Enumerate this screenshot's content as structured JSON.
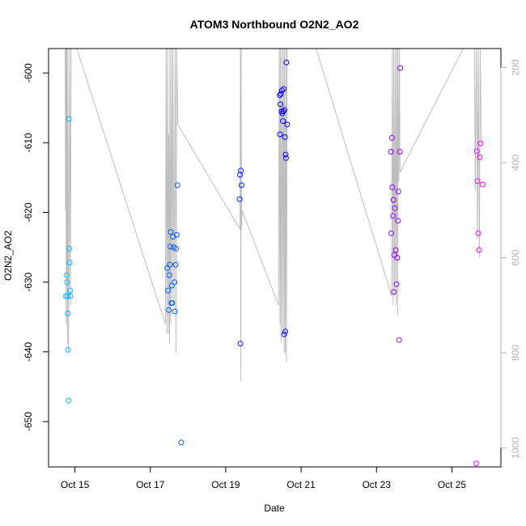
{
  "chart_data": {
    "type": "scatter",
    "title": "ATOM3 Northbound O2N2_AO2",
    "xlabel": "Date",
    "ylabel": "O2N2_AO2",
    "x_unit": "days (October, month-day with fraction)",
    "xlim": [
      14.3,
      26.3
    ],
    "ylim": [
      -656.5,
      -596.5
    ],
    "y2lim": [
      1040,
      160
    ],
    "x_ticks": [
      15,
      17,
      19,
      21,
      23,
      25
    ],
    "x_tick_labels": [
      "Oct 15",
      "Oct 17",
      "Oct 19",
      "Oct 21",
      "Oct 23",
      "Oct 25"
    ],
    "y_ticks": [
      -600,
      -610,
      -620,
      -630,
      -640,
      -650
    ],
    "y_tick_labels": [
      "-600",
      "-610",
      "-620",
      "-630",
      "-640",
      "-650"
    ],
    "y2_ticks": [
      200,
      400,
      600,
      800,
      1000
    ],
    "y2_tick_labels": [
      "200",
      "400",
      "600",
      "800",
      "1000"
    ],
    "grid": false,
    "legend": "none",
    "colors": {
      "pressure_line": "#bebebe",
      "axis": "#000000",
      "right_axis": "#b3b3b3",
      "point_ramp": [
        "#00bfff",
        "#0000ff",
        "#ff00ff"
      ]
    },
    "points": [
      {
        "x": 14.76,
        "y": -632.0
      },
      {
        "x": 14.78,
        "y": -629.0
      },
      {
        "x": 14.79,
        "y": -630.0
      },
      {
        "x": 14.8,
        "y": -632.0
      },
      {
        "x": 14.81,
        "y": -634.5
      },
      {
        "x": 14.82,
        "y": -639.7
      },
      {
        "x": 14.83,
        "y": -647.0
      },
      {
        "x": 14.84,
        "y": -606.6
      },
      {
        "x": 14.85,
        "y": -625.2
      },
      {
        "x": 14.86,
        "y": -627.2
      },
      {
        "x": 14.87,
        "y": -631.2
      },
      {
        "x": 14.88,
        "y": -632.0
      },
      {
        "x": 17.45,
        "y": -628.0
      },
      {
        "x": 17.47,
        "y": -631.2
      },
      {
        "x": 17.49,
        "y": -634.0
      },
      {
        "x": 17.5,
        "y": -629.0
      },
      {
        "x": 17.52,
        "y": -627.5
      },
      {
        "x": 17.53,
        "y": -624.9
      },
      {
        "x": 17.54,
        "y": -622.8
      },
      {
        "x": 17.56,
        "y": -633.0
      },
      {
        "x": 17.57,
        "y": -630.5
      },
      {
        "x": 17.58,
        "y": -633.0
      },
      {
        "x": 17.6,
        "y": -623.5
      },
      {
        "x": 17.62,
        "y": -625.0
      },
      {
        "x": 17.64,
        "y": -630.0
      },
      {
        "x": 17.65,
        "y": -634.2
      },
      {
        "x": 17.67,
        "y": -627.5
      },
      {
        "x": 17.68,
        "y": -625.2
      },
      {
        "x": 17.7,
        "y": -623.2
      },
      {
        "x": 17.72,
        "y": -616.1
      },
      {
        "x": 17.82,
        "y": -653.0
      },
      {
        "x": 19.37,
        "y": -618.1
      },
      {
        "x": 19.38,
        "y": -614.6
      },
      {
        "x": 19.39,
        "y": -638.8
      },
      {
        "x": 19.4,
        "y": -614.0
      },
      {
        "x": 19.42,
        "y": -616.1
      },
      {
        "x": 20.43,
        "y": -603.2
      },
      {
        "x": 20.44,
        "y": -608.8
      },
      {
        "x": 20.45,
        "y": -604.5
      },
      {
        "x": 20.46,
        "y": -603.0
      },
      {
        "x": 20.48,
        "y": -605.5
      },
      {
        "x": 20.49,
        "y": -602.5
      },
      {
        "x": 20.5,
        "y": -605.8
      },
      {
        "x": 20.52,
        "y": -606.9
      },
      {
        "x": 20.53,
        "y": -605.5
      },
      {
        "x": 20.54,
        "y": -602.3
      },
      {
        "x": 20.55,
        "y": -637.5
      },
      {
        "x": 20.56,
        "y": -605.3
      },
      {
        "x": 20.57,
        "y": -609.2
      },
      {
        "x": 20.58,
        "y": -637.1
      },
      {
        "x": 20.59,
        "y": -611.7
      },
      {
        "x": 20.6,
        "y": -612.2
      },
      {
        "x": 20.61,
        "y": -598.5
      },
      {
        "x": 20.63,
        "y": -607.4
      },
      {
        "x": 23.38,
        "y": -611.3
      },
      {
        "x": 23.39,
        "y": -623.0
      },
      {
        "x": 23.41,
        "y": -609.3
      },
      {
        "x": 23.42,
        "y": -616.4
      },
      {
        "x": 23.44,
        "y": -620.5
      },
      {
        "x": 23.45,
        "y": -618.2
      },
      {
        "x": 23.46,
        "y": -631.4
      },
      {
        "x": 23.47,
        "y": -626.1
      },
      {
        "x": 23.49,
        "y": -619.4
      },
      {
        "x": 23.51,
        "y": -625.4
      },
      {
        "x": 23.53,
        "y": -630.3
      },
      {
        "x": 23.55,
        "y": -626.5
      },
      {
        "x": 23.57,
        "y": -621.2
      },
      {
        "x": 23.58,
        "y": -617.0
      },
      {
        "x": 23.6,
        "y": -638.3
      },
      {
        "x": 23.62,
        "y": -611.3
      },
      {
        "x": 23.63,
        "y": -599.3
      },
      {
        "x": 25.65,
        "y": -656.0
      },
      {
        "x": 25.66,
        "y": -611.2
      },
      {
        "x": 25.68,
        "y": -615.5
      },
      {
        "x": 25.7,
        "y": -623.0
      },
      {
        "x": 25.72,
        "y": -625.4
      },
      {
        "x": 25.74,
        "y": -612.1
      },
      {
        "x": 25.76,
        "y": -610.1
      },
      {
        "x": 25.82,
        "y": -616.0
      }
    ],
    "pressure_series": {
      "name": "pressure",
      "axis": "right",
      "points": [
        [
          14.74,
          160
        ],
        [
          14.75,
          500
        ],
        [
          14.76,
          160
        ],
        [
          14.77,
          740
        ],
        [
          14.78,
          160
        ],
        [
          14.8,
          780
        ],
        [
          14.81,
          160
        ],
        [
          14.83,
          800
        ],
        [
          14.86,
          160
        ],
        [
          14.88,
          700
        ],
        [
          14.9,
          160
        ],
        [
          15.05,
          160
        ],
        [
          17.4,
          740
        ],
        [
          17.42,
          160
        ],
        [
          17.44,
          760
        ],
        [
          17.46,
          160
        ],
        [
          17.48,
          760
        ],
        [
          17.49,
          340
        ],
        [
          17.51,
          780
        ],
        [
          17.52,
          160
        ],
        [
          17.54,
          740
        ],
        [
          17.56,
          160
        ],
        [
          17.58,
          700
        ],
        [
          17.6,
          160
        ],
        [
          17.63,
          700
        ],
        [
          17.66,
          160
        ],
        [
          17.68,
          800
        ],
        [
          17.7,
          160
        ],
        [
          17.73,
          320
        ],
        [
          19.38,
          540
        ],
        [
          19.39,
          160
        ],
        [
          19.4,
          860
        ],
        [
          19.41,
          160
        ],
        [
          19.42,
          540
        ],
        [
          19.43,
          500
        ],
        [
          20.4,
          700
        ],
        [
          20.42,
          160
        ],
        [
          20.44,
          740
        ],
        [
          20.45,
          160
        ],
        [
          20.47,
          780
        ],
        [
          20.49,
          160
        ],
        [
          20.51,
          760
        ],
        [
          20.53,
          160
        ],
        [
          20.55,
          800
        ],
        [
          20.56,
          160
        ],
        [
          20.58,
          800
        ],
        [
          20.6,
          160
        ],
        [
          20.61,
          820
        ],
        [
          20.63,
          160
        ],
        [
          21.4,
          160
        ],
        [
          23.4,
          680
        ],
        [
          23.42,
          160
        ],
        [
          23.44,
          700
        ],
        [
          23.46,
          160
        ],
        [
          23.48,
          680
        ],
        [
          23.5,
          160
        ],
        [
          23.52,
          700
        ],
        [
          23.54,
          160
        ],
        [
          23.56,
          720
        ],
        [
          23.57,
          160
        ],
        [
          23.59,
          440
        ],
        [
          23.61,
          160
        ],
        [
          23.62,
          420
        ],
        [
          25.3,
          160
        ],
        [
          25.6,
          160
        ],
        [
          25.62,
          460
        ],
        [
          25.65,
          160
        ],
        [
          25.68,
          560
        ],
        [
          25.7,
          160
        ],
        [
          25.73,
          600
        ],
        [
          25.75,
          160
        ],
        [
          25.78,
          360
        ]
      ]
    }
  }
}
